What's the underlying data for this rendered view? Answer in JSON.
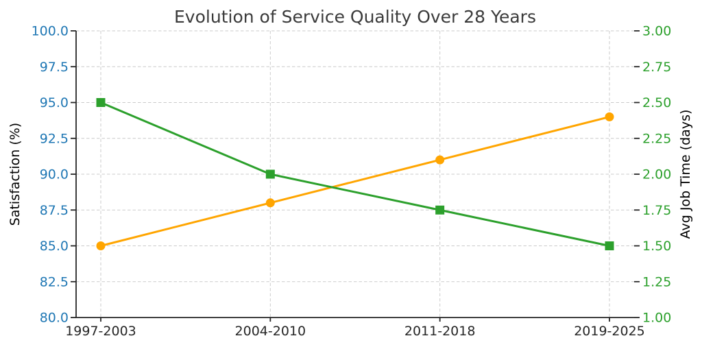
{
  "chart_data": {
    "type": "line",
    "title": "Evolution of Service Quality Over 28 Years",
    "title_color": "#3A3A3A",
    "categories": [
      "1997-2003",
      "2004-2010",
      "2011-2018",
      "2019-2025"
    ],
    "series": [
      {
        "name": "Satisfaction",
        "axis": "left",
        "color": "#FFA500",
        "marker": "circle",
        "values": [
          85,
          88,
          91,
          94
        ]
      },
      {
        "name": "Avg Job Time",
        "axis": "right",
        "color": "#2CA02C",
        "marker": "square",
        "values": [
          2.5,
          2.0,
          1.75,
          1.5
        ]
      }
    ],
    "left_axis": {
      "label": "Satisfaction (%)",
      "color": "#1F77B4",
      "min": 80.0,
      "max": 100.0,
      "ticks": [
        "80.0",
        "82.5",
        "85.0",
        "87.5",
        "90.0",
        "92.5",
        "95.0",
        "97.5",
        "100.0"
      ]
    },
    "right_axis": {
      "label": "Avg Job Time (days)",
      "color": "#2CA02C",
      "min": 1.0,
      "max": 3.0,
      "ticks": [
        "1.00",
        "1.25",
        "1.50",
        "1.75",
        "2.00",
        "2.25",
        "2.50",
        "2.75",
        "3.00"
      ]
    },
    "x_axis": {
      "tick_color": "#262626"
    },
    "grid": {
      "show": true,
      "color": "#CBCBCB",
      "style": "dashed"
    },
    "spine_color": "#262626",
    "legend": {
      "show": false
    }
  }
}
